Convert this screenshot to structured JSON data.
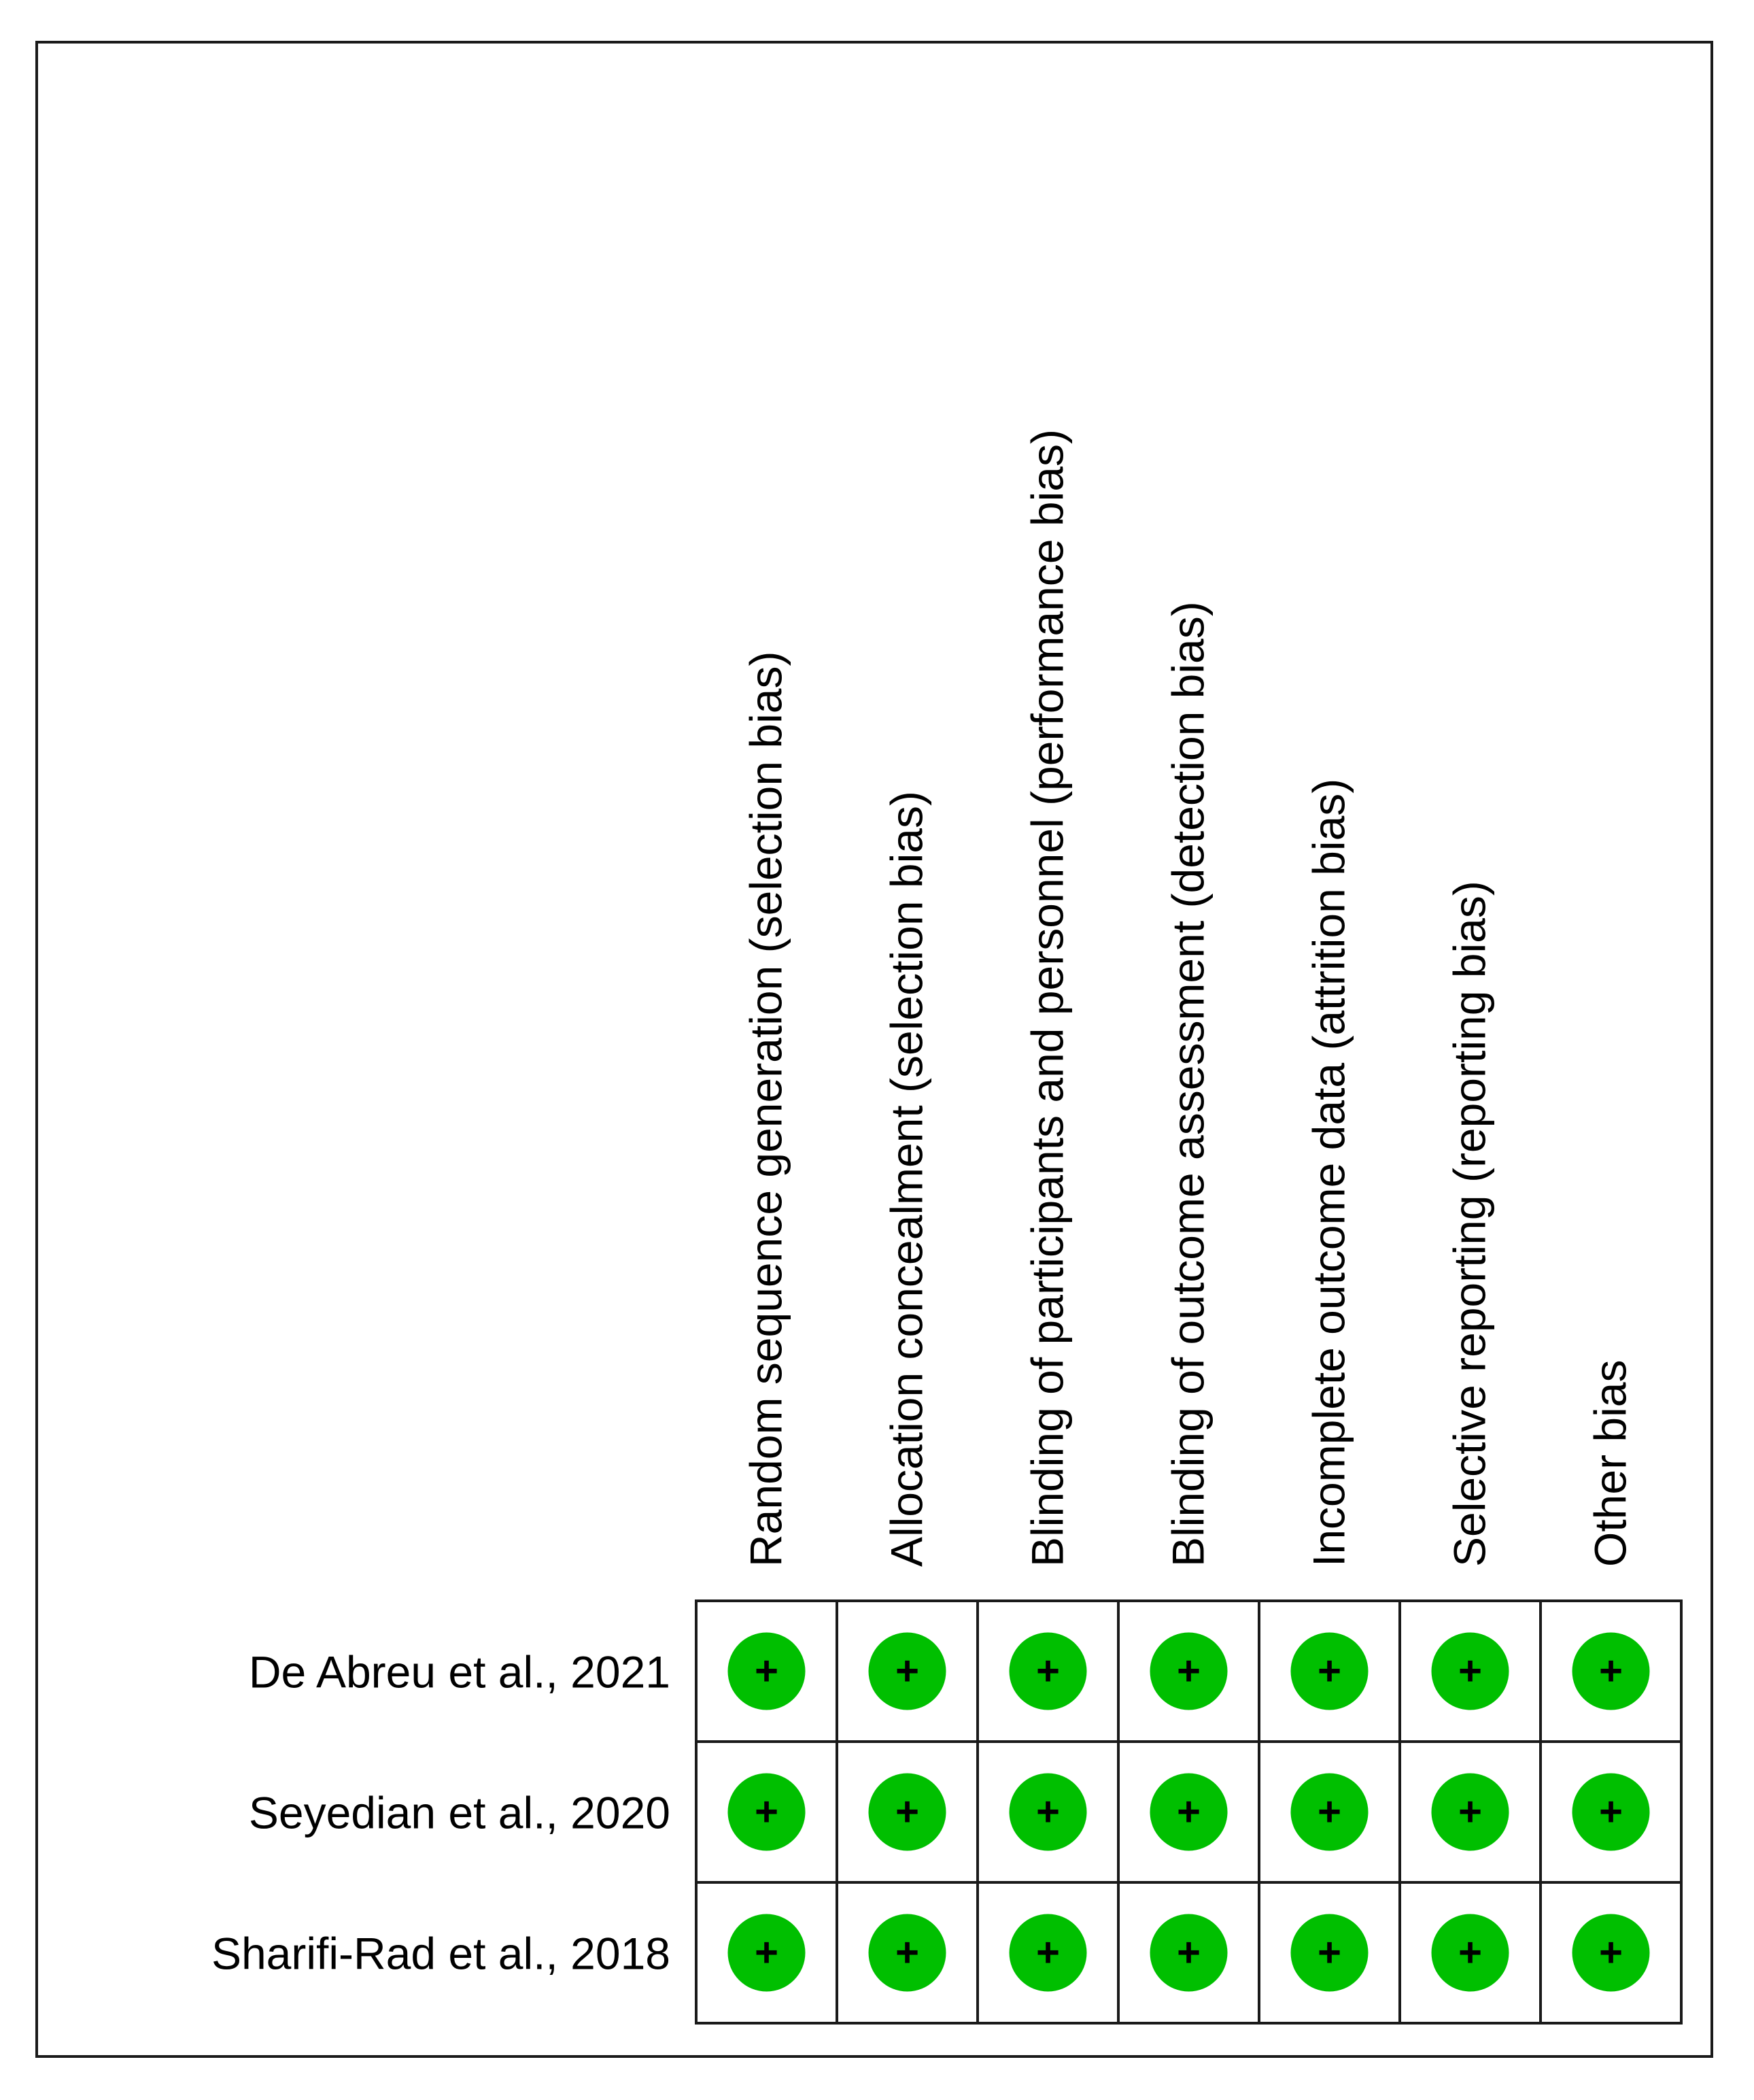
{
  "chart_data": {
    "type": "table",
    "columns": [
      "Random sequence generation (selection bias)",
      "Allocation concealment (selection bias)",
      "Blinding of participants and personnel (performance bias)",
      "Blinding of outcome assessment (detection bias)",
      "Incomplete outcome data (attrition bias)",
      "Selective reporting (reporting bias)",
      "Other bias"
    ],
    "rows": [
      {
        "study": "De Abreu et al., 2021",
        "judgements": [
          "+",
          "+",
          "+",
          "+",
          "+",
          "+",
          "+"
        ]
      },
      {
        "study": "Seyedian et al., 2020",
        "judgements": [
          "+",
          "+",
          "+",
          "+",
          "+",
          "+",
          "+"
        ]
      },
      {
        "study": "Sharifi-Rad et al., 2018",
        "judgements": [
          "+",
          "+",
          "+",
          "+",
          "+",
          "+",
          "+"
        ]
      }
    ],
    "colors": {
      "low_risk": "#00bf00",
      "symbol": "#000000",
      "grid": "#1a1a1a"
    }
  }
}
